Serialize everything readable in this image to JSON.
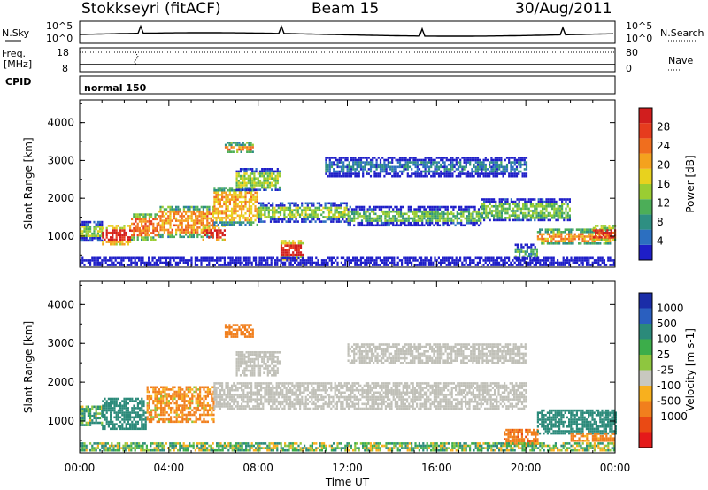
{
  "header": {
    "station": "Stokkseyri (fitACF)",
    "beam": "Beam 15",
    "date": "30/Aug/2011"
  },
  "top_panel": {
    "left_label": "N.Sky",
    "left_ticks": [
      "10^5",
      "10^0"
    ],
    "right_label": "N.Search",
    "right_ticks": [
      "10^5",
      "10^0"
    ]
  },
  "freq_panel": {
    "left_label_1": "Freq.",
    "left_label_2": "[MHz]",
    "left_ticks": [
      "18",
      "8"
    ],
    "right_label": "Nave",
    "right_ticks": [
      "80",
      "0"
    ]
  },
  "cpid": {
    "label": "CPID",
    "mode": "normal 150"
  },
  "colors": {
    "power": [
      "#1e1ec8",
      "#2c6fc0",
      "#2e8f82",
      "#4cae58",
      "#9acd32",
      "#e8d21e",
      "#f4a21e",
      "#f06e1e",
      "#e63c1e",
      "#d11e1e"
    ],
    "velocity": [
      "#e51a1a",
      "#ea4a14",
      "#f17f1d",
      "#f8b01e",
      "#c8c8c0",
      "#8ec63f",
      "#3cad4a",
      "#2b8a7a",
      "#2a5fbf",
      "#1a2da8"
    ],
    "ground_scatter": "#c0c0b8"
  },
  "chart_data": [
    {
      "type": "heatmap",
      "panel": "power",
      "ylabel": "Slant Range [km]",
      "yticks": [
        "1000",
        "2000",
        "3000",
        "4000"
      ],
      "ylim": [
        180,
        4600
      ],
      "xlim": [
        0,
        24
      ],
      "colorbar": {
        "label": "Power [dB]",
        "ticks": [
          "4",
          "8",
          "12",
          "16",
          "20",
          "24",
          "28"
        ],
        "range": [
          0,
          32
        ]
      },
      "regions": [
        {
          "t": [
            0.0,
            1.0
          ],
          "r": [
            900,
            1400
          ],
          "v": 14
        },
        {
          "t": [
            1.0,
            2.3
          ],
          "r": [
            800,
            1300
          ],
          "v": 30
        },
        {
          "t": [
            2.3,
            3.5
          ],
          "r": [
            900,
            1600
          ],
          "v": 24
        },
        {
          "t": [
            3.5,
            6.0
          ],
          "r": [
            1000,
            1800
          ],
          "v": 22
        },
        {
          "t": [
            5.5,
            6.5
          ],
          "r": [
            900,
            1300
          ],
          "v": 30
        },
        {
          "t": [
            6.0,
            8.0
          ],
          "r": [
            1300,
            2300
          ],
          "v": 20
        },
        {
          "t": [
            6.5,
            7.8
          ],
          "r": [
            3200,
            3500
          ],
          "v": 22
        },
        {
          "t": [
            7.0,
            9.0
          ],
          "r": [
            2200,
            2800
          ],
          "v": 14
        },
        {
          "t": [
            8.0,
            12.0
          ],
          "r": [
            1400,
            1900
          ],
          "v": 14
        },
        {
          "t": [
            9.0,
            10.0
          ],
          "r": [
            400,
            900
          ],
          "v": 30
        },
        {
          "t": [
            12.0,
            18.0
          ],
          "r": [
            1300,
            1800
          ],
          "v": 12
        },
        {
          "t": [
            18.0,
            22.0
          ],
          "r": [
            1400,
            2000
          ],
          "v": 12
        },
        {
          "t": [
            19.5,
            20.5
          ],
          "r": [
            400,
            800
          ],
          "v": 10
        },
        {
          "t": [
            20.5,
            23.8
          ],
          "r": [
            800,
            1200
          ],
          "v": 22
        },
        {
          "t": [
            23.0,
            24.0
          ],
          "r": [
            900,
            1300
          ],
          "v": 28
        },
        {
          "t": [
            11.0,
            20.0
          ],
          "r": [
            2600,
            3100
          ],
          "v": 6
        },
        {
          "t": [
            0.0,
            24.0
          ],
          "r": [
            250,
            450
          ],
          "v": 6
        }
      ]
    },
    {
      "type": "heatmap",
      "panel": "velocity",
      "ylabel": "Slant Range [km]",
      "xlabel": "Time UT",
      "yticks": [
        "1000",
        "2000",
        "3000",
        "4000"
      ],
      "xticks": [
        "00:00",
        "04:00",
        "08:00",
        "12:00",
        "16:00",
        "20:00",
        "00:00"
      ],
      "ylim": [
        180,
        4600
      ],
      "xlim": [
        0,
        24
      ],
      "colorbar": {
        "label": "Velocity [m s-1]",
        "ticks": [
          "-1000",
          "-500",
          "-100",
          "-25",
          "25",
          "100",
          "500",
          "1000"
        ]
      },
      "regions": [
        {
          "t": [
            0.0,
            1.0
          ],
          "r": [
            900,
            1400
          ],
          "v": 100
        },
        {
          "t": [
            1.0,
            3.0
          ],
          "r": [
            800,
            1600
          ],
          "v": 300
        },
        {
          "t": [
            3.0,
            6.0
          ],
          "r": [
            1000,
            1900
          ],
          "v": -150
        },
        {
          "t": [
            6.5,
            7.8
          ],
          "r": [
            3200,
            3500
          ],
          "v": -300
        },
        {
          "t": [
            6.0,
            20.0
          ],
          "r": [
            1300,
            2000
          ],
          "v": 0,
          "gs": true
        },
        {
          "t": [
            7.0,
            9.0
          ],
          "r": [
            2200,
            2800
          ],
          "v": 0,
          "gs": true
        },
        {
          "t": [
            12.0,
            20.0
          ],
          "r": [
            2500,
            3000
          ],
          "v": 0,
          "gs": true
        },
        {
          "t": [
            19.0,
            20.5
          ],
          "r": [
            400,
            800
          ],
          "v": -400
        },
        {
          "t": [
            20.5,
            24.0
          ],
          "r": [
            700,
            1300
          ],
          "v": 300
        },
        {
          "t": [
            22.0,
            24.0
          ],
          "r": [
            500,
            700
          ],
          "v": -200
        },
        {
          "t": [
            0.0,
            24.0
          ],
          "r": [
            250,
            450
          ],
          "v": 50
        }
      ]
    }
  ]
}
